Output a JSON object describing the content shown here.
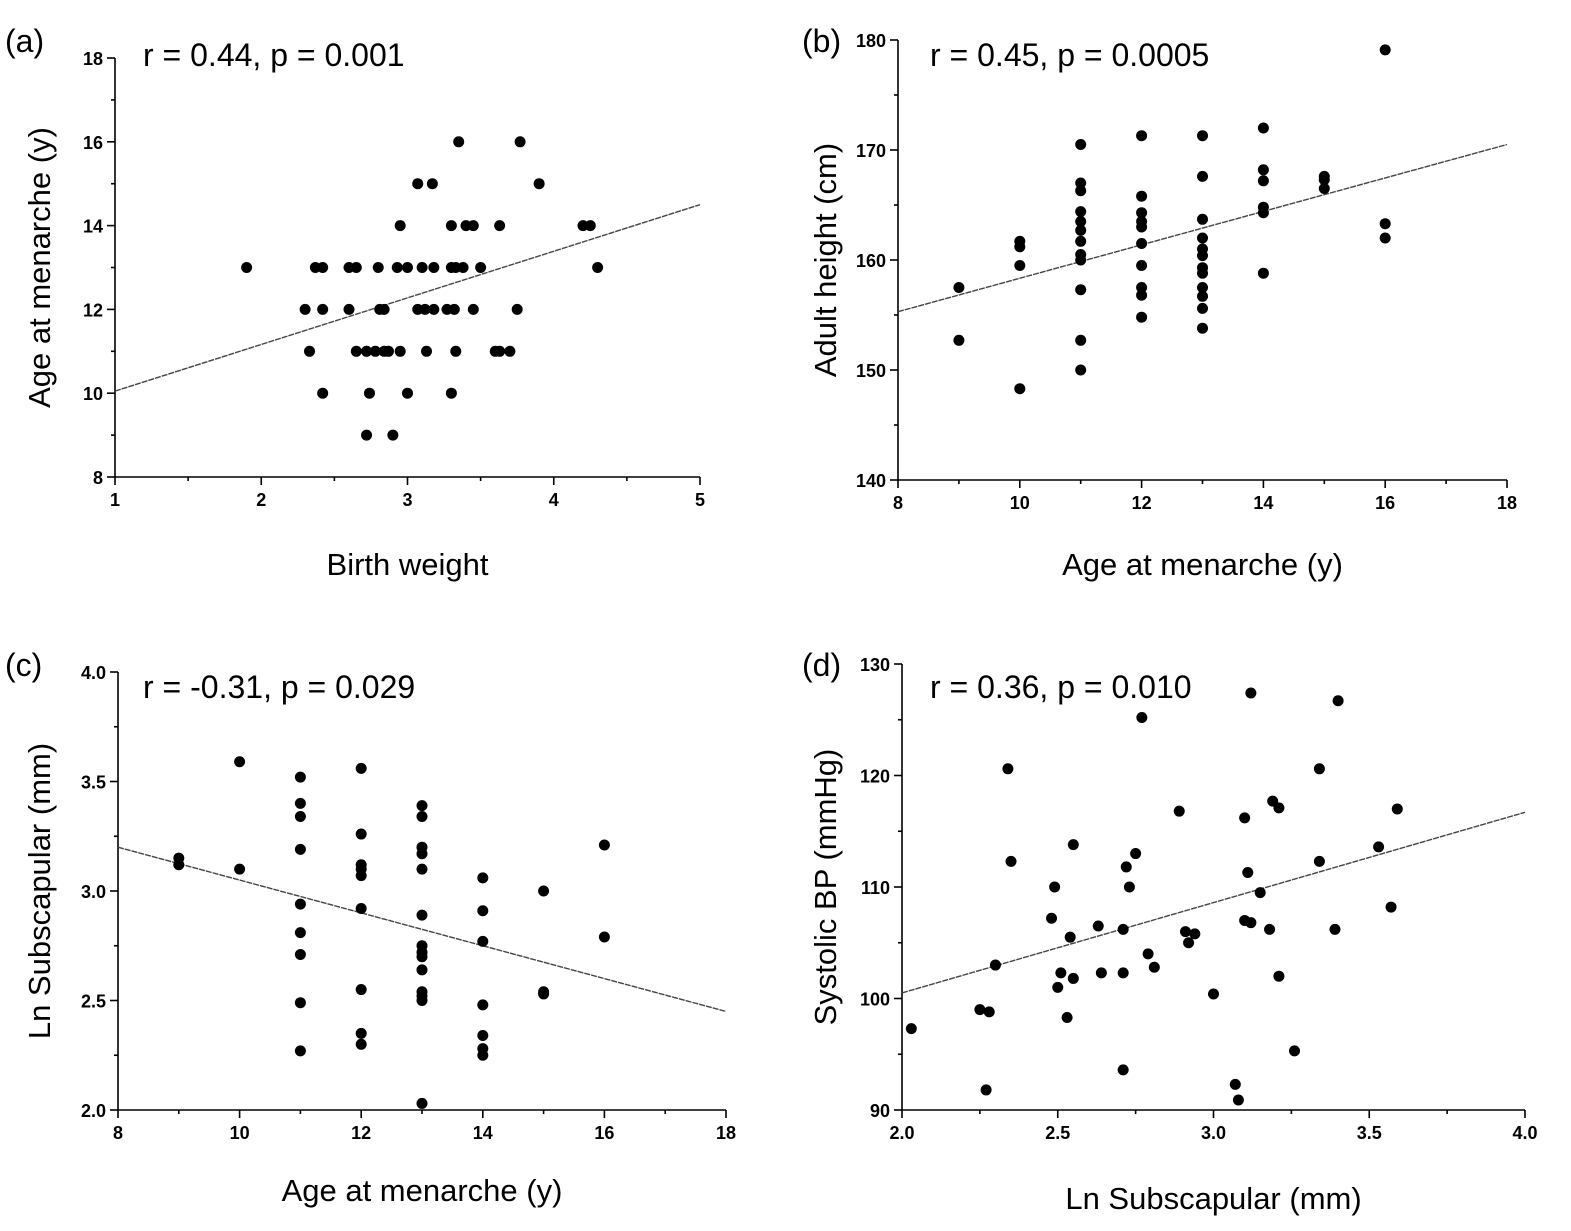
{
  "chart_data": [
    {
      "type": "scatter",
      "panel_label": "(a)",
      "annotation": "r = 0.44, p = 0.001",
      "xlabel": "Birth weight",
      "ylabel": "Age at menarche (y)",
      "xlim": [
        1,
        5
      ],
      "ylim": [
        8,
        18
      ],
      "xticks": [
        1,
        2,
        3,
        4,
        5
      ],
      "xtick_labels": [
        "1",
        "2",
        "3",
        "4",
        "5"
      ],
      "yticks": [
        8,
        10,
        12,
        14,
        16,
        18
      ],
      "ytick_labels": [
        "8",
        "10",
        "12",
        "14",
        "16",
        "18"
      ],
      "fit_line": {
        "x": [
          1,
          5
        ],
        "y": [
          10.05,
          14.5
        ]
      },
      "points": [
        [
          1.9,
          13
        ],
        [
          2.3,
          12
        ],
        [
          2.33,
          11
        ],
        [
          2.37,
          13
        ],
        [
          2.42,
          13
        ],
        [
          2.42,
          12
        ],
        [
          2.42,
          10
        ],
        [
          2.6,
          12
        ],
        [
          2.6,
          13
        ],
        [
          2.65,
          13
        ],
        [
          2.65,
          11
        ],
        [
          2.72,
          11
        ],
        [
          2.72,
          9
        ],
        [
          2.74,
          10
        ],
        [
          2.78,
          11
        ],
        [
          2.8,
          13
        ],
        [
          2.81,
          12
        ],
        [
          2.84,
          12
        ],
        [
          2.84,
          11
        ],
        [
          2.87,
          11
        ],
        [
          2.9,
          9
        ],
        [
          2.93,
          13
        ],
        [
          2.95,
          11
        ],
        [
          2.95,
          14
        ],
        [
          3.0,
          10
        ],
        [
          3.0,
          13
        ],
        [
          3.07,
          12
        ],
        [
          3.07,
          15
        ],
        [
          3.1,
          13
        ],
        [
          3.12,
          12
        ],
        [
          3.13,
          11
        ],
        [
          3.17,
          15
        ],
        [
          3.18,
          12
        ],
        [
          3.18,
          13
        ],
        [
          3.27,
          12
        ],
        [
          3.3,
          14
        ],
        [
          3.3,
          13
        ],
        [
          3.3,
          10
        ],
        [
          3.32,
          12
        ],
        [
          3.33,
          11
        ],
        [
          3.33,
          13
        ],
        [
          3.35,
          16
        ],
        [
          3.38,
          13
        ],
        [
          3.4,
          14
        ],
        [
          3.45,
          14
        ],
        [
          3.45,
          12
        ],
        [
          3.5,
          13
        ],
        [
          3.6,
          11
        ],
        [
          3.63,
          11
        ],
        [
          3.63,
          14
        ],
        [
          3.7,
          11
        ],
        [
          3.75,
          12
        ],
        [
          3.77,
          16
        ],
        [
          3.9,
          15
        ],
        [
          4.2,
          14
        ],
        [
          4.25,
          14
        ],
        [
          4.3,
          13
        ]
      ]
    },
    {
      "type": "scatter",
      "panel_label": "(b)",
      "annotation": "r = 0.45, p = 0.0005",
      "xlabel": "Age at menarche (y)",
      "ylabel": "Adult height (cm)",
      "xlim": [
        8,
        18
      ],
      "ylim": [
        140,
        180
      ],
      "xticks": [
        8,
        10,
        12,
        14,
        16,
        18
      ],
      "xtick_labels": [
        "8",
        "10",
        "12",
        "14",
        "16",
        "18"
      ],
      "yticks": [
        140,
        150,
        160,
        170,
        180
      ],
      "ytick_labels": [
        "140",
        "150",
        "160",
        "170",
        "180"
      ],
      "fit_line": {
        "x": [
          8,
          18
        ],
        "y": [
          155.3,
          170.5
        ]
      },
      "points": [
        [
          9,
          157.5
        ],
        [
          9,
          152.7
        ],
        [
          10,
          161.7
        ],
        [
          10,
          161.2
        ],
        [
          10,
          159.5
        ],
        [
          10,
          148.3
        ],
        [
          11,
          170.5
        ],
        [
          11,
          167
        ],
        [
          11,
          166.3
        ],
        [
          11,
          164.4
        ],
        [
          11,
          163.5
        ],
        [
          11,
          162.7
        ],
        [
          11,
          161.7
        ],
        [
          11,
          160.5
        ],
        [
          11,
          160
        ],
        [
          11,
          157.3
        ],
        [
          11,
          152.7
        ],
        [
          11,
          150
        ],
        [
          12,
          171.3
        ],
        [
          12,
          165.8
        ],
        [
          12,
          164.3
        ],
        [
          12,
          163.5
        ],
        [
          12,
          163
        ],
        [
          12,
          161.5
        ],
        [
          12,
          159.5
        ],
        [
          12,
          157.5
        ],
        [
          12,
          156.8
        ],
        [
          12,
          154.8
        ],
        [
          13,
          171.3
        ],
        [
          13,
          167.6
        ],
        [
          13,
          163.7
        ],
        [
          13,
          162
        ],
        [
          13,
          161
        ],
        [
          13,
          160.4
        ],
        [
          13,
          159.3
        ],
        [
          13,
          158.8
        ],
        [
          13,
          157.5
        ],
        [
          13,
          156.7
        ],
        [
          13,
          155.6
        ],
        [
          13,
          153.8
        ],
        [
          14,
          172
        ],
        [
          14,
          168.2
        ],
        [
          14,
          167.2
        ],
        [
          14,
          164.8
        ],
        [
          14,
          164.3
        ],
        [
          14,
          158.8
        ],
        [
          15,
          167.6
        ],
        [
          15,
          167.3
        ],
        [
          15,
          166.5
        ],
        [
          16,
          179.1
        ],
        [
          16,
          163.3
        ],
        [
          16,
          162
        ]
      ]
    },
    {
      "type": "scatter",
      "panel_label": "(c)",
      "annotation": "r = -0.31, p = 0.029",
      "xlabel": "Age at menarche (y)",
      "ylabel": "Ln Subscapular (mm)",
      "xlim": [
        8,
        18
      ],
      "ylim": [
        2.0,
        4.0
      ],
      "xticks": [
        8,
        10,
        12,
        14,
        16,
        18
      ],
      "xtick_labels": [
        "8",
        "10",
        "12",
        "14",
        "16",
        "18"
      ],
      "yticks": [
        2.0,
        2.5,
        3.0,
        3.5,
        4.0
      ],
      "ytick_labels": [
        "2.0",
        "2.5",
        "3.0",
        "3.5",
        "4.0"
      ],
      "fit_line": {
        "x": [
          8,
          18
        ],
        "y": [
          3.2,
          2.45
        ]
      },
      "points": [
        [
          9,
          3.15
        ],
        [
          9,
          3.12
        ],
        [
          10,
          3.59
        ],
        [
          10,
          3.1
        ],
        [
          11,
          3.52
        ],
        [
          11,
          3.4
        ],
        [
          11,
          3.34
        ],
        [
          11,
          3.19
        ],
        [
          11,
          2.94
        ],
        [
          11,
          2.81
        ],
        [
          11,
          2.71
        ],
        [
          11,
          2.49
        ],
        [
          11,
          2.27
        ],
        [
          12,
          3.56
        ],
        [
          12,
          3.26
        ],
        [
          12,
          3.12
        ],
        [
          12,
          3.1
        ],
        [
          12,
          3.07
        ],
        [
          12,
          2.92
        ],
        [
          12,
          2.55
        ],
        [
          12,
          2.35
        ],
        [
          12,
          2.3
        ],
        [
          13,
          3.39
        ],
        [
          13,
          3.34
        ],
        [
          13,
          3.2
        ],
        [
          13,
          3.17
        ],
        [
          13,
          3.1
        ],
        [
          13,
          2.89
        ],
        [
          13,
          2.75
        ],
        [
          13,
          2.72
        ],
        [
          13,
          2.7
        ],
        [
          13,
          2.64
        ],
        [
          13,
          2.54
        ],
        [
          13,
          2.52
        ],
        [
          13,
          2.5
        ],
        [
          13,
          2.03
        ],
        [
          14,
          3.06
        ],
        [
          14,
          2.91
        ],
        [
          14,
          2.77
        ],
        [
          14,
          2.48
        ],
        [
          14,
          2.34
        ],
        [
          14,
          2.28
        ],
        [
          14,
          2.25
        ],
        [
          15,
          3.0
        ],
        [
          15,
          2.54
        ],
        [
          15,
          2.53
        ],
        [
          16,
          3.21
        ],
        [
          16,
          2.79
        ]
      ]
    },
    {
      "type": "scatter",
      "panel_label": "(d)",
      "annotation": "r = 0.36, p = 0.010",
      "xlabel": "Ln Subscapular (mm)",
      "ylabel": "Systolic BP (mmHg)",
      "xlim": [
        2.0,
        4.0
      ],
      "ylim": [
        90,
        130
      ],
      "xticks": [
        2.0,
        2.5,
        3.0,
        3.5,
        4.0
      ],
      "xtick_labels": [
        "2.0",
        "2.5",
        "3.0",
        "3.5",
        "4.0"
      ],
      "yticks": [
        90,
        100,
        110,
        120,
        130
      ],
      "ytick_labels": [
        "90",
        "100",
        "110",
        "120",
        "130"
      ],
      "fit_line": {
        "x": [
          2.0,
          4.0
        ],
        "y": [
          100.5,
          116.7
        ]
      },
      "points": [
        [
          2.03,
          97.3
        ],
        [
          2.25,
          99
        ],
        [
          2.27,
          91.8
        ],
        [
          2.28,
          98.8
        ],
        [
          2.3,
          103
        ],
        [
          2.34,
          120.6
        ],
        [
          2.35,
          112.3
        ],
        [
          2.48,
          107.2
        ],
        [
          2.49,
          110
        ],
        [
          2.5,
          101
        ],
        [
          2.51,
          102.3
        ],
        [
          2.53,
          98.3
        ],
        [
          2.54,
          105.5
        ],
        [
          2.55,
          101.8
        ],
        [
          2.55,
          113.8
        ],
        [
          2.63,
          106.5
        ],
        [
          2.64,
          102.3
        ],
        [
          2.71,
          102.3
        ],
        [
          2.71,
          106.2
        ],
        [
          2.71,
          93.6
        ],
        [
          2.72,
          111.8
        ],
        [
          2.73,
          110
        ],
        [
          2.75,
          113
        ],
        [
          2.77,
          125.2
        ],
        [
          2.79,
          104
        ],
        [
          2.81,
          102.8
        ],
        [
          2.89,
          116.8
        ],
        [
          2.91,
          106
        ],
        [
          2.92,
          105
        ],
        [
          2.94,
          105.8
        ],
        [
          3.0,
          100.4
        ],
        [
          3.07,
          92.3
        ],
        [
          3.08,
          90.9
        ],
        [
          3.1,
          116.2
        ],
        [
          3.1,
          107
        ],
        [
          3.11,
          111.3
        ],
        [
          3.12,
          127.4
        ],
        [
          3.12,
          106.8
        ],
        [
          3.15,
          109.5
        ],
        [
          3.18,
          106.2
        ],
        [
          3.19,
          117.7
        ],
        [
          3.21,
          117.1
        ],
        [
          3.21,
          102
        ],
        [
          3.26,
          95.3
        ],
        [
          3.34,
          120.6
        ],
        [
          3.34,
          112.3
        ],
        [
          3.39,
          106.2
        ],
        [
          3.4,
          126.7
        ],
        [
          3.53,
          113.6
        ],
        [
          3.57,
          108.2
        ],
        [
          3.59,
          117
        ]
      ]
    }
  ]
}
